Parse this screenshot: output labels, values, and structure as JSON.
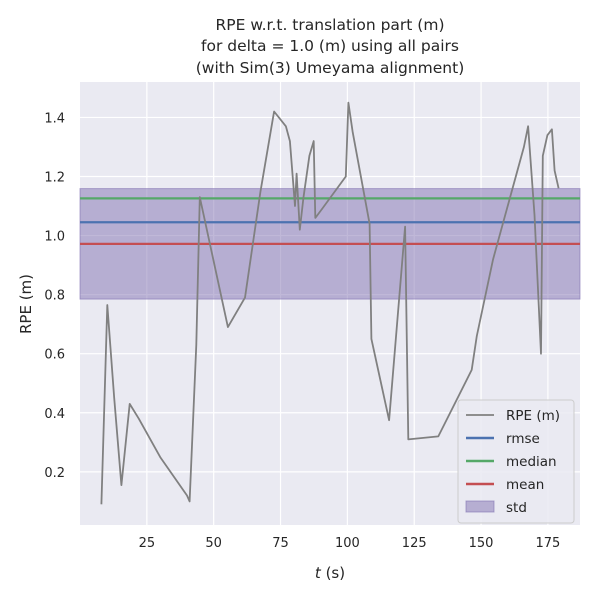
{
  "chart_data": {
    "type": "line",
    "title_lines": [
      "RPE w.r.t. translation part (m)",
      "for delta = 1.0 (m) using all pairs",
      "(with Sim(3) Umeyama alignment)"
    ],
    "xlabel_italic": "t",
    "xlabel_rest": " (s)",
    "ylabel": "RPE (m)",
    "xlim": [
      0,
      187
    ],
    "ylim": [
      0.02,
      1.52
    ],
    "xticks": [
      25,
      50,
      75,
      100,
      125,
      150,
      175
    ],
    "yticks": [
      0.2,
      0.4,
      0.6,
      0.8,
      1.0,
      1.2,
      1.4
    ],
    "xtick_labels": [
      "25",
      "50",
      "75",
      "100",
      "125",
      "150",
      "175"
    ],
    "ytick_labels": [
      "0.2",
      "0.4",
      "0.6",
      "0.8",
      "1.0",
      "1.2",
      "1.4"
    ],
    "grid": true,
    "legend_position": "lower-right",
    "series": [
      {
        "name": "RPE (m)",
        "color": "#808080",
        "x": [
          8.0,
          10.2,
          12.8,
          15.5,
          18.6,
          22.0,
          30.0,
          40.0,
          41.0,
          43.5,
          44.8,
          46.0,
          55.3,
          61.7,
          67.5,
          72.6,
          77.0,
          78.5,
          80.4,
          81.0,
          82.2,
          83.6,
          85.8,
          87.4,
          88.0,
          90.5,
          99.4,
          100.4,
          102.0,
          108.3,
          109.0,
          115.6,
          121.6,
          122.8,
          134.0,
          146.5,
          148.4,
          154.5,
          166.0,
          167.6,
          170.0,
          172.4,
          173.1,
          174.8,
          176.5,
          177.5,
          179.0
        ],
        "y": [
          0.09,
          0.765,
          0.45,
          0.155,
          0.43,
          0.38,
          0.25,
          0.12,
          0.1,
          0.63,
          1.13,
          1.08,
          0.69,
          0.79,
          1.15,
          1.42,
          1.37,
          1.32,
          1.1,
          1.21,
          1.02,
          1.13,
          1.27,
          1.32,
          1.06,
          1.09,
          1.2,
          1.45,
          1.35,
          1.04,
          0.65,
          0.375,
          1.03,
          0.31,
          0.32,
          0.545,
          0.66,
          0.92,
          1.3,
          1.37,
          1.07,
          0.6,
          1.27,
          1.34,
          1.36,
          1.22,
          1.16
        ]
      },
      {
        "name": "rmse",
        "color": "#4c72b0",
        "value": 1.045
      },
      {
        "name": "median",
        "color": "#55a868",
        "value": 1.126
      },
      {
        "name": "mean",
        "color": "#c44e52",
        "value": 0.972
      },
      {
        "name": "std",
        "color": "#8172b2",
        "range": [
          0.785,
          1.159
        ]
      }
    ]
  }
}
